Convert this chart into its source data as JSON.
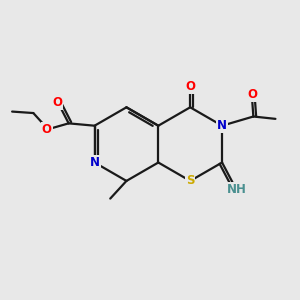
{
  "bg_color": "#e8e8e8",
  "bond_color": "#1a1a1a",
  "bond_width": 1.6,
  "atom_colors": {
    "O": "#ff0000",
    "N": "#0000cc",
    "S": "#ccaa00",
    "NH": "#4a9090",
    "C": "#1a1a1a"
  },
  "fig_size": [
    3.0,
    3.0
  ],
  "dpi": 100
}
